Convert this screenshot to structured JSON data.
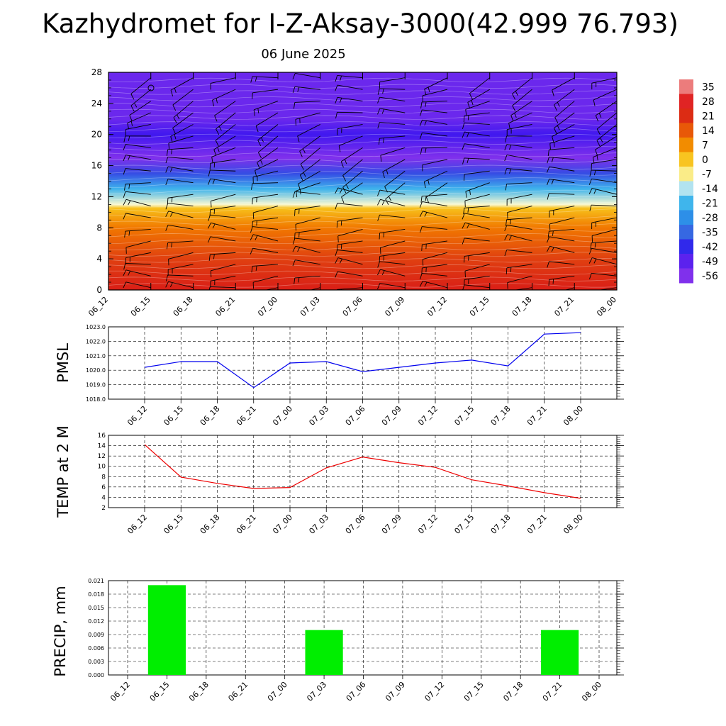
{
  "title": "Kazhydromet for I-Z-Aksay-3000(42.999 76.793)",
  "subtitle": "06 June 2025",
  "chart_data": [
    {
      "type": "heatmap",
      "x_ticks": [
        "06_12",
        "06_15",
        "06_18",
        "06_21",
        "07_00",
        "07_03",
        "07_06",
        "07_09",
        "07_12",
        "07_15",
        "07_18",
        "07_21",
        "08_00"
      ],
      "y_ticks": [
        "0",
        "4",
        "8",
        "12",
        "16",
        "20",
        "24",
        "28"
      ],
      "ylim": [
        0,
        28
      ],
      "colorbar_labels": [
        "35",
        "28",
        "21",
        "14",
        "7",
        "0",
        "-7",
        "-14",
        "-21",
        "-28",
        "-35",
        "-42",
        "-49",
        "-56"
      ],
      "field_profile": [
        {
          "level": 0,
          "value": 20
        },
        {
          "level": 4,
          "value": 14
        },
        {
          "level": 8,
          "value": 6
        },
        {
          "level": 10.5,
          "value": -3
        },
        {
          "level": 11,
          "value": -14
        },
        {
          "level": 13,
          "value": -25
        },
        {
          "level": 15,
          "value": -42
        },
        {
          "level": 17,
          "value": -56
        },
        {
          "level": 20,
          "value": -50
        },
        {
          "level": 22,
          "value": -54
        },
        {
          "level": 28,
          "value": -54
        }
      ]
    },
    {
      "type": "line",
      "ylabel": "PMSL",
      "x": [
        "06_12",
        "06_15",
        "06_18",
        "06_21",
        "07_00",
        "07_03",
        "07_06",
        "07_09",
        "07_12",
        "07_15",
        "07_18",
        "07_21",
        "08_00"
      ],
      "values": [
        1020.2,
        1020.6,
        1020.6,
        1018.8,
        1020.5,
        1020.6,
        1019.9,
        1020.2,
        1020.5,
        1020.7,
        1020.3,
        1022.5,
        1022.6
      ],
      "ylim": [
        1018.0,
        1023.0
      ],
      "y_ticks": [
        "1018.0",
        "1019.0",
        "1020.0",
        "1021.0",
        "1022.0",
        "1023.0"
      ],
      "color": "#0000ee",
      "grid": true
    },
    {
      "type": "line",
      "ylabel": "TEMP at 2 M",
      "x": [
        "06_12",
        "06_15",
        "06_18",
        "06_21",
        "07_00",
        "07_03",
        "07_06",
        "07_09",
        "07_12",
        "07_15",
        "07_18",
        "07_21",
        "08_00"
      ],
      "values": [
        14.2,
        7.9,
        6.7,
        5.7,
        5.9,
        9.7,
        11.8,
        10.7,
        9.8,
        7.4,
        6.2,
        4.9,
        3.8
      ],
      "ylim": [
        2,
        16
      ],
      "y_ticks": [
        "2",
        "4",
        "6",
        "8",
        "10",
        "12",
        "14",
        "16"
      ],
      "color": "#ee0000",
      "grid": true
    },
    {
      "type": "bar",
      "ylabel": "PRECIP, mm",
      "categories": [
        "06_12",
        "06_15",
        "06_18",
        "06_21",
        "07_00",
        "07_03",
        "07_06",
        "07_09",
        "07_12",
        "07_15",
        "07_18",
        "07_21",
        "08_00"
      ],
      "values": [
        0,
        0.02,
        0,
        0,
        0,
        0.01,
        0,
        0,
        0,
        0,
        0,
        0.01,
        0
      ],
      "ylim": [
        0,
        0.021
      ],
      "y_ticks": [
        "0.000",
        "0.003",
        "0.006",
        "0.009",
        "0.012",
        "0.015",
        "0.018",
        "0.021"
      ],
      "color": "#00ee00",
      "grid": true
    }
  ]
}
